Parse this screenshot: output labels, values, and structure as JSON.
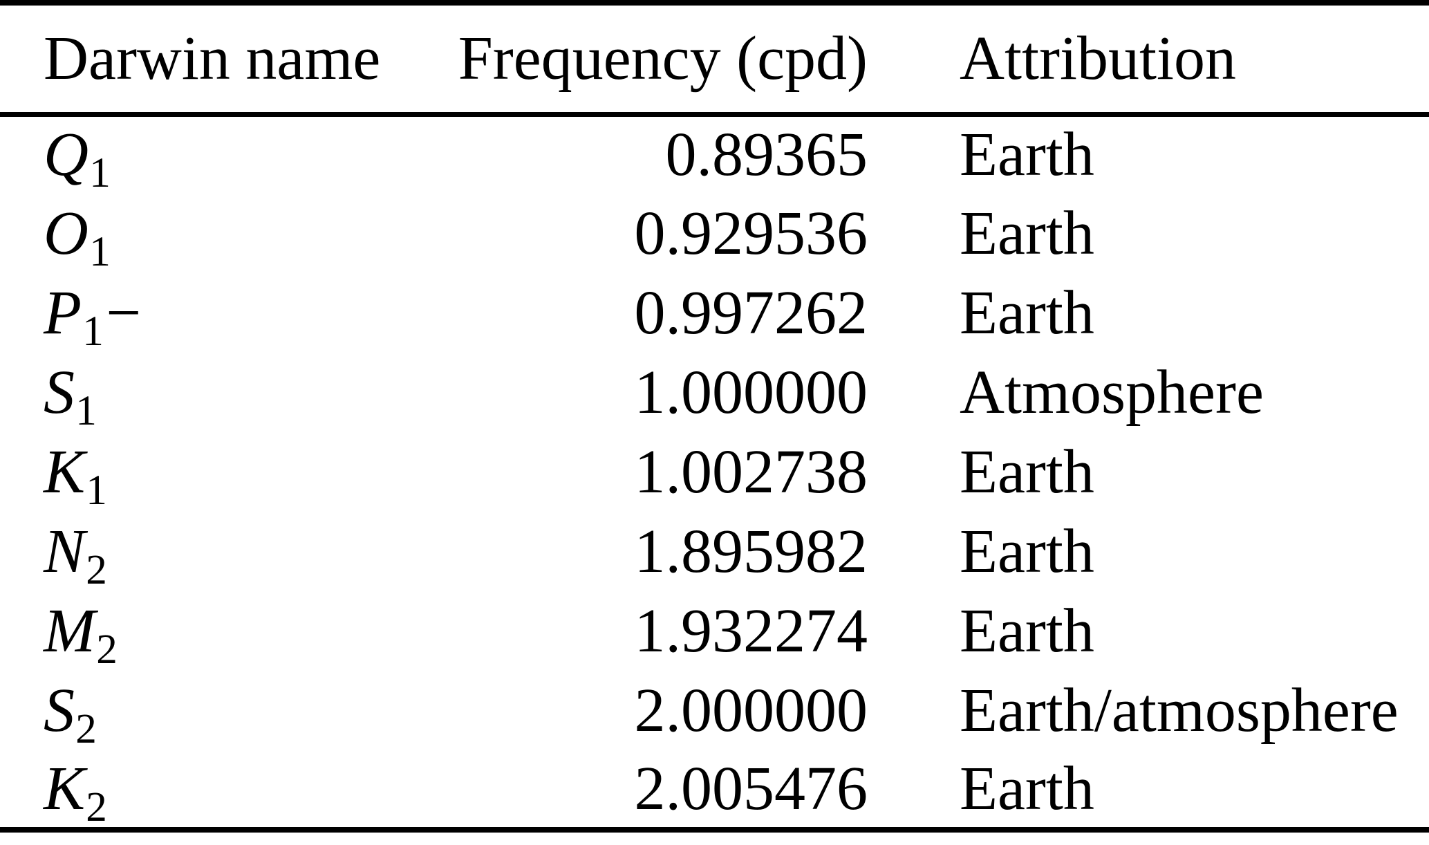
{
  "table": {
    "header": {
      "darwin_name": "Darwin name",
      "frequency": "Frequency (cpd)",
      "attribution": "Attribution"
    },
    "rows": [
      {
        "letter": "Q",
        "sub": "1",
        "suffix": "",
        "frequency": "0.89365",
        "attribution": "Earth"
      },
      {
        "letter": "O",
        "sub": "1",
        "suffix": "",
        "frequency": "0.929536",
        "attribution": "Earth"
      },
      {
        "letter": "P",
        "sub": "1",
        "suffix": "−",
        "frequency": "0.997262",
        "attribution": "Earth"
      },
      {
        "letter": "S",
        "sub": "1",
        "suffix": "",
        "frequency": "1.000000",
        "attribution": "Atmosphere"
      },
      {
        "letter": "K",
        "sub": "1",
        "suffix": "",
        "frequency": "1.002738",
        "attribution": "Earth"
      },
      {
        "letter": "N",
        "sub": "2",
        "suffix": "",
        "frequency": "1.895982",
        "attribution": "Earth"
      },
      {
        "letter": "M",
        "sub": "2",
        "suffix": "",
        "frequency": "1.932274",
        "attribution": "Earth"
      },
      {
        "letter": "S",
        "sub": "2",
        "suffix": "",
        "frequency": "2.000000",
        "attribution": "Earth/atmosphere"
      },
      {
        "letter": "K",
        "sub": "2",
        "suffix": "",
        "frequency": "2.005476",
        "attribution": "Earth"
      }
    ],
    "colors": {
      "text": "#000000",
      "background": "#ffffff",
      "rule": "#000000"
    }
  },
  "chart_data": {
    "type": "table",
    "title": "",
    "columns": [
      "Darwin name",
      "Frequency (cpd)",
      "Attribution"
    ],
    "rows": [
      [
        "Q1",
        "0.89365",
        "Earth"
      ],
      [
        "O1",
        "0.929536",
        "Earth"
      ],
      [
        "P1−",
        "0.997262",
        "Earth"
      ],
      [
        "S1",
        "1.000000",
        "Atmosphere"
      ],
      [
        "K1",
        "1.002738",
        "Earth"
      ],
      [
        "N2",
        "1.895982",
        "Earth"
      ],
      [
        "M2",
        "1.932274",
        "Earth"
      ],
      [
        "S2",
        "2.000000",
        "Earth/atmosphere"
      ],
      [
        "K2",
        "2.005476",
        "Earth"
      ]
    ]
  }
}
